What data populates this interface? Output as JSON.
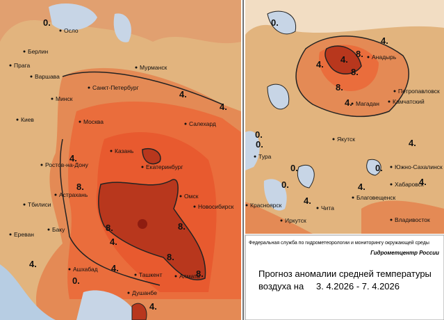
{
  "left_map": {
    "cities": [
      "Осло",
      "Берлин",
      "Прага",
      "Варшава",
      "Мурманск",
      "Санкт-Петербург",
      "Минск",
      "Киев",
      "Москва",
      "Салехард",
      "Казань",
      "Ростов-на-Дону",
      "Екатеринбург",
      "Астрахань",
      "Тбилиси",
      "Омск",
      "Новосибирск",
      "Ереван",
      "Баку",
      "Ашхабад",
      "Ташкент",
      "Алмата",
      "Душанбе"
    ],
    "contour_labels": [
      "0.",
      "4.",
      "4.",
      "4.",
      "8.",
      "8.",
      "8.",
      "8.",
      "8.",
      "4.",
      "4.",
      "4.",
      "0.",
      "4."
    ]
  },
  "right_map": {
    "cities": [
      "Анадырь",
      "Петропавловск",
      "Магадан",
      "Камчатский",
      "Якутск",
      "Тура",
      "Южно-Сахалинск",
      "Хабаровск",
      "Благовещенск",
      "Красноярск",
      "Чита",
      "Иркутск",
      "Владивосток"
    ],
    "contour_labels": [
      "0.",
      "4.",
      "4.",
      "8.",
      "8.",
      "4.",
      "8.",
      "4.",
      "0.",
      "0.",
      "0.",
      "0.",
      "4.",
      "4.",
      "4.",
      "4.",
      "0."
    ]
  },
  "footer": {
    "agency": "Федеральная служба по гидрометеорологии и мониторингу окружающей среды",
    "center": "Гидрометцентр России",
    "title_line1": "Прогноз аномалии средней температуры",
    "title_line2_prefix": "воздуха на",
    "period": "3. 4.2026 - 7. 4.2026"
  }
}
